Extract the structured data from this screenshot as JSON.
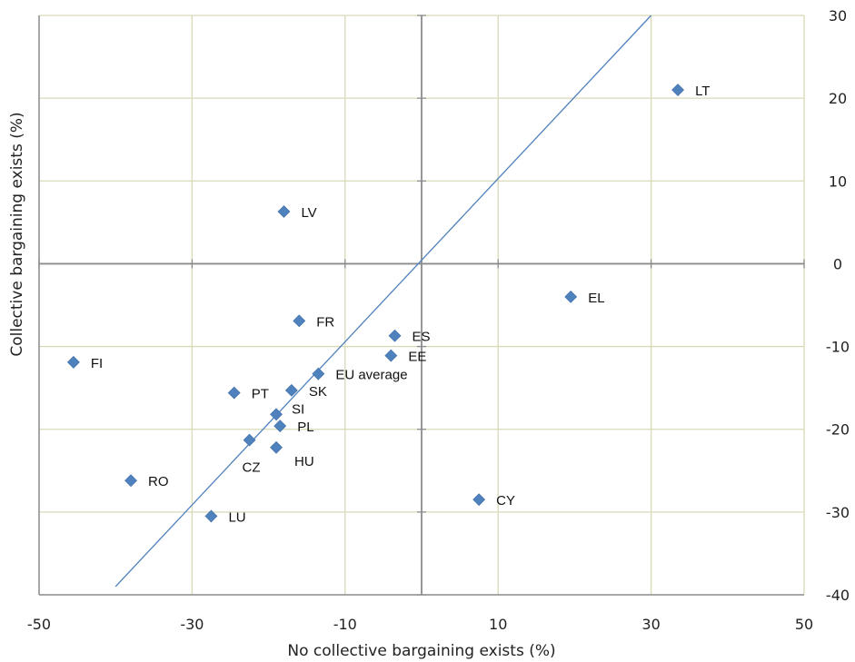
{
  "chart_data": {
    "type": "scatter",
    "xlabel": "No collective bargaining exists (%)",
    "ylabel": "Collective bargaining exists (%)",
    "xlim": [
      -50,
      50
    ],
    "ylim": [
      -40,
      30
    ],
    "xticks": [
      -50,
      -30,
      -10,
      10,
      30,
      50
    ],
    "yticks": [
      -40,
      -30,
      -20,
      -10,
      0,
      10,
      20,
      30
    ],
    "x_gridlines": [
      -50,
      -30,
      -10,
      10,
      30,
      50
    ],
    "y_gridlines": [
      -30,
      -20,
      -10,
      0,
      10,
      20,
      30
    ],
    "grid": true,
    "y_axis_side": "right",
    "reference_line": {
      "from": [
        -40,
        -39
      ],
      "to": [
        30,
        30
      ]
    },
    "marker_color": "#4F81BD",
    "line_color": "#4F81BD",
    "points": [
      {
        "label": "LT",
        "x": 33.5,
        "y": 21
      },
      {
        "label": "LV",
        "x": -18,
        "y": 6.3
      },
      {
        "label": "EL",
        "x": 19.5,
        "y": -4
      },
      {
        "label": "FR",
        "x": -16,
        "y": -6.9
      },
      {
        "label": "ES",
        "x": -3.5,
        "y": -8.7
      },
      {
        "label": "EE",
        "x": -4,
        "y": -11.1
      },
      {
        "label": "FI",
        "x": -45.5,
        "y": -11.9
      },
      {
        "label": "EU average",
        "x": -13.5,
        "y": -13.3
      },
      {
        "label": "SK",
        "x": -17,
        "y": -15.3
      },
      {
        "label": "PT",
        "x": -24.5,
        "y": -15.6
      },
      {
        "label": "SI",
        "x": -19,
        "y": -18.2
      },
      {
        "label": "PL",
        "x": -18.5,
        "y": -19.6
      },
      {
        "label": "CZ",
        "x": -22.5,
        "y": -21.3
      },
      {
        "label": "HU",
        "x": -19,
        "y": -22.2
      },
      {
        "label": "RO",
        "x": -38,
        "y": -26.2
      },
      {
        "label": "CY",
        "x": 7.5,
        "y": -28.5
      },
      {
        "label": "LU",
        "x": -27.5,
        "y": -30.5
      }
    ]
  }
}
